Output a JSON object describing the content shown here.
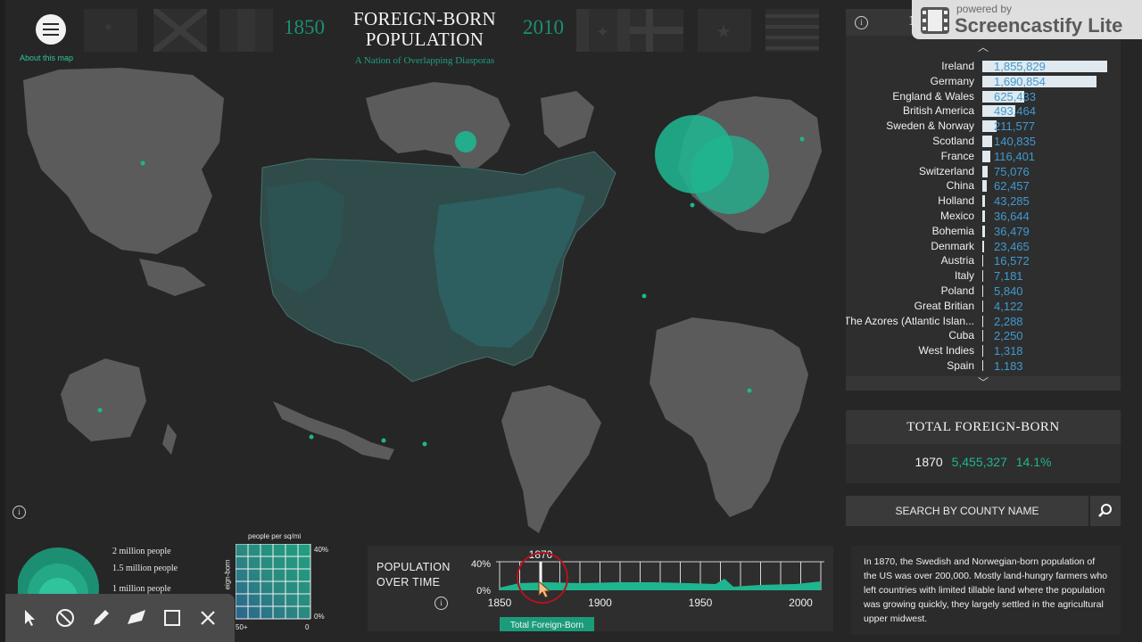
{
  "header": {
    "title_line1": "FOREIGN-BORN",
    "title_line2": "POPULATION",
    "subtitle": "A Nation of Overlapping Diasporas",
    "year_start": "1850",
    "year_end": "2010",
    "about_link": "About this map"
  },
  "panel": {
    "header_fragment": "1",
    "countries": [
      {
        "name": "Ireland",
        "value": "1,855,829",
        "n": 1855829
      },
      {
        "name": "Germany",
        "value": "1,690,854",
        "n": 1690854
      },
      {
        "name": "England & Wales",
        "value": "625,433",
        "n": 625433
      },
      {
        "name": "British America",
        "value": "493,464",
        "n": 493464
      },
      {
        "name": "Sweden & Norway",
        "value": "211,577",
        "n": 211577
      },
      {
        "name": "Scotland",
        "value": "140,835",
        "n": 140835
      },
      {
        "name": "France",
        "value": "116,401",
        "n": 116401
      },
      {
        "name": "Switzerland",
        "value": "75,076",
        "n": 75076
      },
      {
        "name": "China",
        "value": "62,457",
        "n": 62457
      },
      {
        "name": "Holland",
        "value": "43,285",
        "n": 43285
      },
      {
        "name": "Mexico",
        "value": "36,644",
        "n": 36644
      },
      {
        "name": "Bohemia",
        "value": "36,479",
        "n": 36479
      },
      {
        "name": "Denmark",
        "value": "23,465",
        "n": 23465
      },
      {
        "name": "Austria",
        "value": "16,572",
        "n": 16572
      },
      {
        "name": "Italy",
        "value": "7,181",
        "n": 7181
      },
      {
        "name": "Poland",
        "value": "5,840",
        "n": 5840
      },
      {
        "name": "Great Britian",
        "value": "4,122",
        "n": 4122
      },
      {
        "name": "The Azores (Atlantic Islan...",
        "value": "2,288",
        "n": 2288
      },
      {
        "name": "Cuba",
        "value": "2,250",
        "n": 2250
      },
      {
        "name": "West Indies",
        "value": "1,318",
        "n": 1318
      },
      {
        "name": "Spain",
        "value": "1,183",
        "n": 1183
      }
    ]
  },
  "total": {
    "heading": "TOTAL FOREIGN-BORN",
    "year": "1870",
    "count": "5,455,327",
    "percent": "14.1%"
  },
  "search": {
    "label": "SEARCH BY COUNTY NAME"
  },
  "description": "In 1870, the Swedish and Norwegian-born population of the US was over 200,000. Mostly land-hungry farmers who left countries with limited tillable land where the population was growing quickly, they largely settled in the agricultural upper midwest.",
  "timeline": {
    "title_line1": "POPULATION",
    "title_line2": "OVER TIME",
    "selected_year": "1870",
    "y_top": "40%",
    "y_bottom": "0%",
    "x_ticks": [
      "1850",
      "1900",
      "1950",
      "2000"
    ],
    "series_label": "Total Foreign-Born"
  },
  "legend": {
    "circle_labels": [
      "2 million people",
      "1.5 million people",
      "1 million people"
    ],
    "density_title": "people per sq/mi",
    "foreign_born_label": "eign-born",
    "pct_top": "40%",
    "pct_bottom": "0%",
    "density_left": "50+",
    "density_right": "0"
  },
  "info_glyph": "i",
  "watermark": {
    "line1": "powered by",
    "line2": "Screencastify Lite"
  },
  "colors": {
    "accent": "#1fb58f",
    "bar": "#dfe9ef",
    "value_text": "#3f9ad0",
    "background": "#262626"
  }
}
